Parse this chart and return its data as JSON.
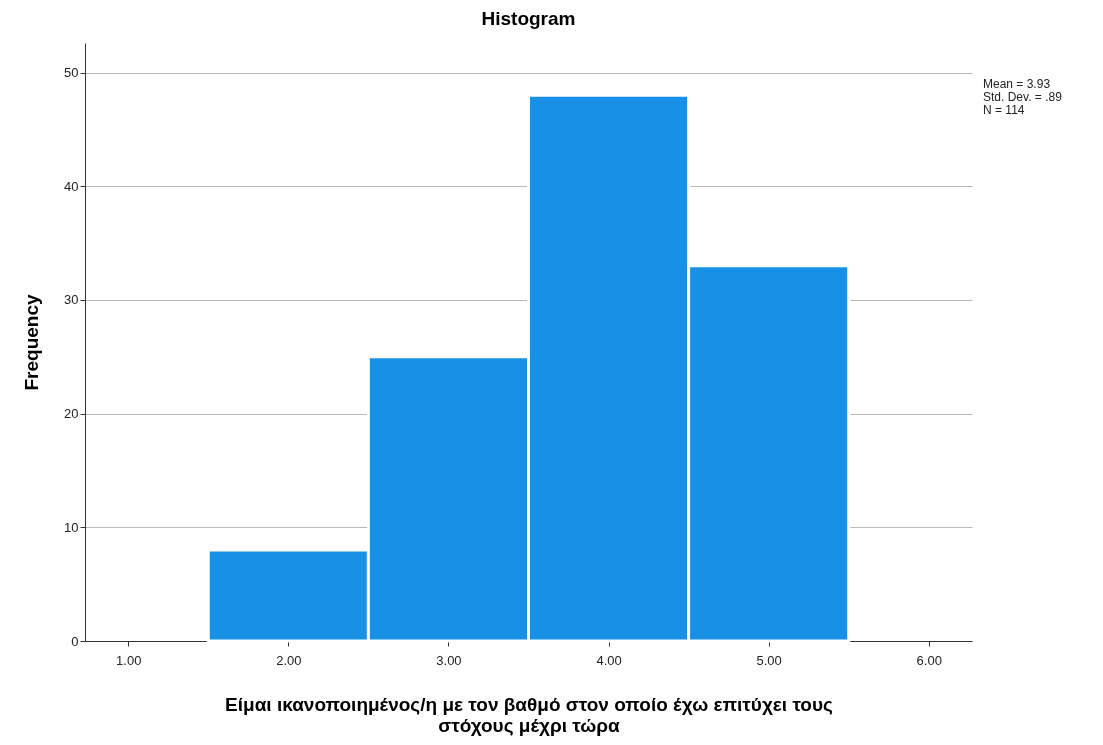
{
  "chart_data": {
    "type": "histogram",
    "title": "Histogram",
    "xlabel": "Είμαι ικανοποιημένος/η με τον βαθμό στον οποίο έχω επιτύχει τους στόχους μέχρι τώρα",
    "ylabel": "Frequency",
    "bins": [
      1.5,
      2.5,
      3.5,
      4.5,
      5.5
    ],
    "values": [
      8,
      25,
      48,
      33
    ],
    "color": "#1790e6",
    "xlim": [
      0.73,
      6.27
    ],
    "xticks": [
      {
        "value": 1,
        "label": "1.00"
      },
      {
        "value": 2,
        "label": "2.00"
      },
      {
        "value": 3,
        "label": "3.00"
      },
      {
        "value": 4,
        "label": "4.00"
      },
      {
        "value": 5,
        "label": "5.00"
      },
      {
        "value": 6,
        "label": "6.00"
      }
    ],
    "ylim": [
      0,
      52.6
    ],
    "yticks": [
      0,
      10,
      20,
      30,
      40,
      50
    ],
    "grid": "y",
    "annotations": [
      "Mean = 3.93",
      "Std. Dev. = .89",
      "N = 114"
    ]
  }
}
